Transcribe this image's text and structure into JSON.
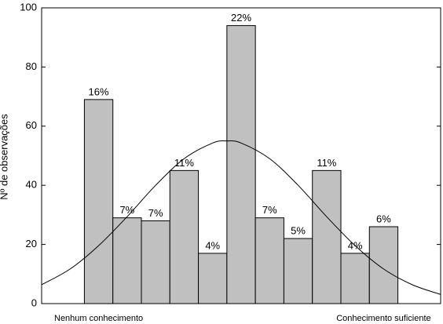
{
  "chart_data": {
    "type": "histogram",
    "y_label": "Nº de observações",
    "bins": [
      0.5,
      1.5,
      2.5,
      3.5,
      4.5,
      5.5,
      6.5,
      7.5,
      8.5,
      9.5,
      10.5,
      11.5
    ],
    "values": [
      69,
      29,
      28,
      45,
      17,
      94,
      29,
      22,
      45,
      17,
      26
    ],
    "value_labels": [
      "16%",
      "7%",
      "7%",
      "11%",
      "4%",
      "22%",
      "7%",
      "5%",
      "11%",
      "4%",
      "6%"
    ],
    "color": "#c0c0c0",
    "xlim": [
      -1,
      13
    ],
    "xticks": [
      {
        "value": 1,
        "label": "Nenhum conhecimento"
      },
      {
        "value": 11,
        "label": "Conhecimento suficiente"
      }
    ],
    "ylim": [
      0,
      100
    ],
    "yticks": [
      0,
      20,
      40,
      60,
      80,
      100
    ],
    "curve": {
      "color": "#000000",
      "x": [
        -1,
        0,
        1,
        2,
        3,
        4,
        5,
        5.5,
        6,
        7,
        8,
        9,
        10,
        11,
        12,
        13
      ],
      "values": [
        6.4,
        11.7,
        19.6,
        29.4,
        40,
        49,
        54.3,
        55,
        54.3,
        49,
        40,
        29.4,
        19.6,
        11.7,
        6.4,
        3.1
      ]
    }
  }
}
